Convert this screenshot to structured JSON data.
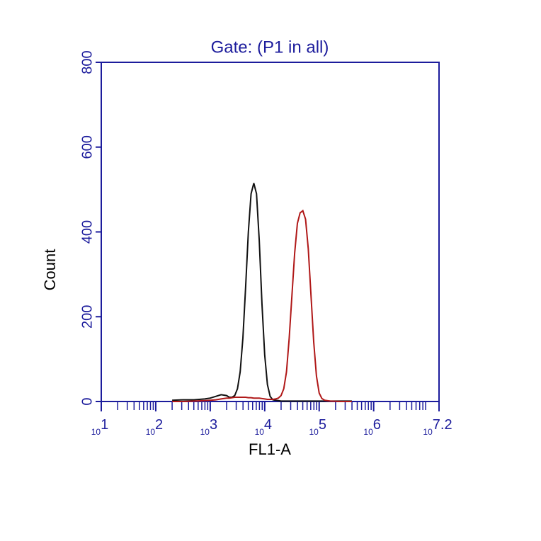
{
  "chart_data": {
    "type": "line",
    "title": "Gate: (P1 in all)",
    "x_label": "FL1-A",
    "y_label": "Count",
    "xlog": true,
    "xlim": [
      10,
      15848932
    ],
    "ylim": [
      0,
      800
    ],
    "yticks": [
      0,
      200,
      400,
      600,
      800
    ],
    "xticks": [
      {
        "value": 10,
        "label": {
          "base": "10",
          "exponent": "1"
        }
      },
      {
        "value": 100,
        "label": {
          "base": "10",
          "exponent": "2"
        }
      },
      {
        "value": 1000,
        "label": {
          "base": "10",
          "exponent": "3"
        }
      },
      {
        "value": 10000,
        "label": {
          "base": "10",
          "exponent": "4"
        }
      },
      {
        "value": 100000,
        "label": {
          "base": "10",
          "exponent": "5"
        }
      },
      {
        "value": 1000000,
        "label": {
          "base": "10",
          "exponent": "6"
        }
      },
      {
        "value": 15848932,
        "label": {
          "base": "10",
          "exponent": "7.2"
        }
      }
    ],
    "axis_color": "#1c1c9c",
    "x": [
      200,
      316,
      501,
      794,
      1000,
      1259,
      1585,
      1995,
      2239,
      2512,
      2818,
      3162,
      3548,
      3981,
      4467,
      5012,
      5623,
      6310,
      7079,
      7943,
      8913,
      10000,
      11220,
      12589,
      14125,
      15849,
      17783,
      19953,
      22387,
      25119,
      28184,
      31623,
      35481,
      39811,
      44668,
      50119,
      56234,
      63096,
      70795,
      79433,
      89125,
      100000,
      112202,
      125893,
      158489,
      251189,
      398107
    ],
    "series": [
      {
        "color": "#111111",
        "values": [
          3,
          4,
          4,
          6,
          8,
          12,
          16,
          14,
          10,
          10,
          14,
          30,
          70,
          150,
          270,
          400,
          490,
          515,
          490,
          380,
          230,
          110,
          40,
          12,
          4,
          3,
          2,
          1,
          1,
          1,
          1,
          1,
          1,
          1,
          1,
          1,
          1,
          1,
          1,
          1,
          1,
          1,
          1,
          1,
          1,
          1,
          1
        ]
      },
      {
        "color": "#b01818",
        "values": [
          0,
          0,
          1,
          2,
          3,
          4,
          6,
          8,
          8,
          9,
          10,
          10,
          10,
          10,
          10,
          9,
          9,
          8,
          8,
          8,
          7,
          6,
          5,
          5,
          5,
          6,
          8,
          14,
          30,
          70,
          150,
          250,
          350,
          420,
          445,
          450,
          430,
          360,
          250,
          140,
          60,
          20,
          7,
          3,
          1,
          0,
          0
        ]
      }
    ]
  }
}
